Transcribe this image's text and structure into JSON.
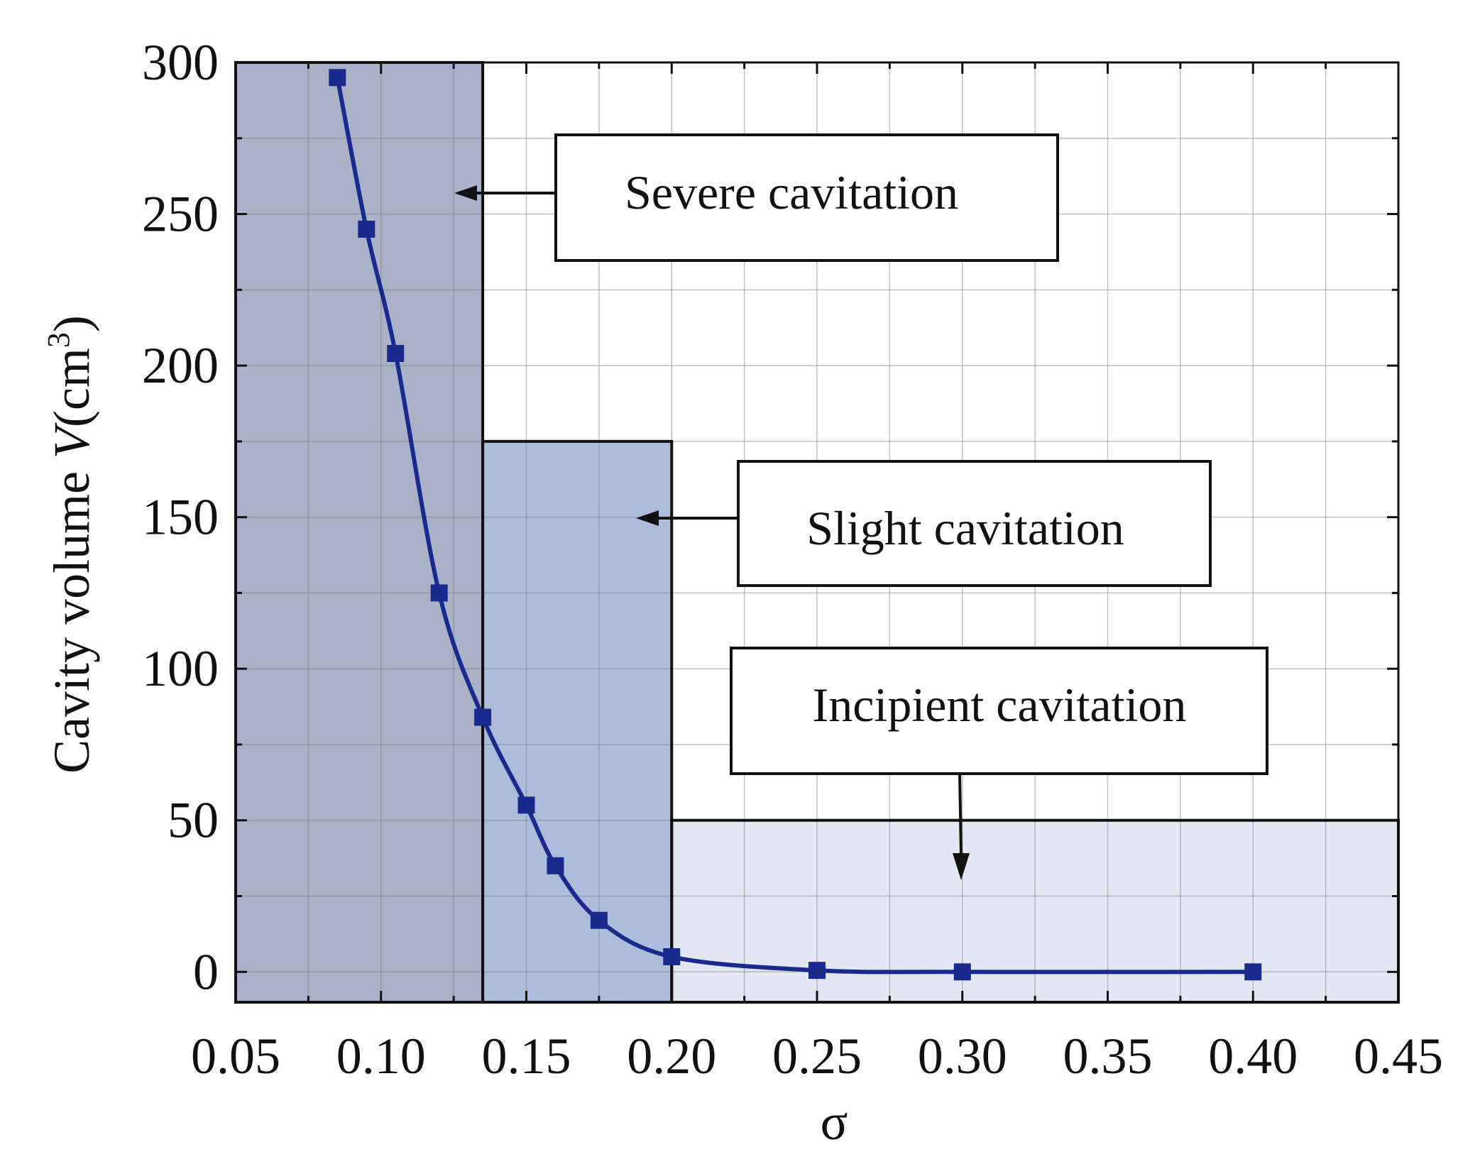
{
  "chart_data": {
    "type": "line",
    "title": "",
    "xlabel": "σ",
    "ylabel_prefix": "Cavity volume ",
    "ylabel_var": "V",
    "ylabel_unit_open": "(cm",
    "ylabel_unit_exp": "3",
    "ylabel_unit_close": ")",
    "xlim": [
      0.05,
      0.45
    ],
    "ylim": [
      -10,
      300
    ],
    "x_ticks": [
      0.05,
      0.1,
      0.15,
      0.2,
      0.25,
      0.3,
      0.35,
      0.4,
      0.45
    ],
    "x_tick_labels": [
      "0.05",
      "0.10",
      "0.15",
      "0.20",
      "0.25",
      "0.30",
      "0.35",
      "0.40",
      "0.45"
    ],
    "y_ticks": [
      0,
      50,
      100,
      150,
      200,
      250,
      300
    ],
    "y_tick_labels": [
      "0",
      "50",
      "100",
      "150",
      "200",
      "250",
      "300"
    ],
    "grid": true,
    "series": [
      {
        "name": "Cavity volume",
        "color": "#1a2a8c",
        "x": [
          0.085,
          0.095,
          0.105,
          0.12,
          0.135,
          0.15,
          0.16,
          0.175,
          0.2,
          0.25,
          0.3,
          0.4
        ],
        "y": [
          295,
          245,
          204,
          125,
          84,
          55,
          35,
          17,
          5,
          0.5,
          0,
          0
        ]
      }
    ],
    "regions": [
      {
        "name": "Severe cavitation",
        "x": [
          0.05,
          0.135
        ],
        "y": [
          -10,
          300
        ],
        "color": "#a9b2c6"
      },
      {
        "name": "Slight cavitation",
        "x": [
          0.135,
          0.2
        ],
        "y": [
          -10,
          175
        ],
        "color": "#adbcda"
      },
      {
        "name": "Incipient cavitation",
        "x": [
          0.2,
          0.45
        ],
        "y": [
          -10,
          50
        ],
        "color": "#e1e8f4"
      }
    ],
    "annotations": [
      {
        "text": "Severe cavitation",
        "region": 0
      },
      {
        "text": "Slight cavitation",
        "region": 1
      },
      {
        "text": "Incipient cavitation",
        "region": 2
      }
    ]
  }
}
